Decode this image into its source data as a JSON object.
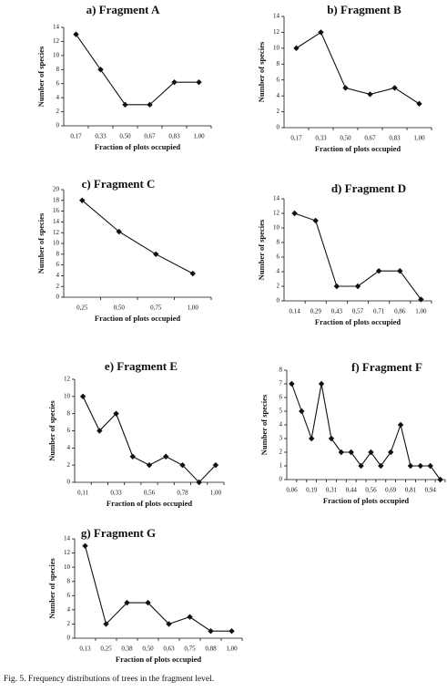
{
  "chart_data": [
    {
      "type": "line",
      "title": "a) Fragment A",
      "ylabel": "Number of species",
      "xlabel": "Fraction of plots occupied",
      "categories": [
        "0,17",
        "0,33",
        "0,50",
        "0,67",
        "0,83",
        "1,00"
      ],
      "values": [
        13,
        8,
        3,
        3,
        6.2,
        6.2
      ],
      "ylim": [
        0,
        14
      ],
      "yticks": [
        0,
        2,
        4,
        6,
        8,
        10,
        12,
        14
      ],
      "color": "#111111"
    },
    {
      "type": "line",
      "title": "b) Fragment B",
      "ylabel": "Number of species",
      "xlabel": "Fraction of plots occupied",
      "categories": [
        "0,17",
        "0,33",
        "0,50",
        "0,67",
        "0,83",
        "1,00"
      ],
      "values": [
        10,
        12,
        5,
        4.2,
        5,
        3
      ],
      "ylim": [
        0,
        14
      ],
      "yticks": [
        0,
        2,
        4,
        6,
        8,
        10,
        12,
        14
      ],
      "color": "#111111"
    },
    {
      "type": "line",
      "title": "c) Fragment C",
      "ylabel": "Number of species",
      "xlabel": "Fraction of plots occupied",
      "categories": [
        "0,25",
        "0,50",
        "0,75",
        "1,00"
      ],
      "values": [
        18,
        12.2,
        8,
        4.4
      ],
      "ylim": [
        0,
        20
      ],
      "yticks": [
        0,
        2,
        4,
        6,
        8,
        10,
        12,
        14,
        16,
        18,
        20
      ],
      "color": "#111111"
    },
    {
      "type": "line",
      "title": "d) Fragment D",
      "ylabel": "Number of species",
      "xlabel": "Fraction of plots occupied",
      "categories": [
        "0,14",
        "0,29",
        "0,43",
        "0,57",
        "0,71",
        "0,86",
        "1,00"
      ],
      "values": [
        12,
        11,
        2,
        2,
        4.1,
        4.1,
        0.2
      ],
      "ylim": [
        0,
        14
      ],
      "yticks": [
        0,
        2,
        4,
        6,
        8,
        10,
        12,
        14
      ],
      "color": "#111111"
    },
    {
      "type": "line",
      "title": "e) Fragment E",
      "ylabel": "Number of species",
      "xlabel": "Fraction of plots occupied",
      "categories": [
        "0,11",
        null,
        "0,33",
        null,
        "0,56",
        null,
        "0,78",
        null,
        "1,00"
      ],
      "values": [
        10,
        6,
        8,
        3,
        2,
        3,
        2,
        0,
        2
      ],
      "ylim": [
        0,
        12
      ],
      "yticks": [
        0,
        2,
        4,
        6,
        8,
        10,
        12
      ],
      "color": "#111111"
    },
    {
      "type": "line",
      "title": "f) Fragment F",
      "ylabel": "Number of species",
      "xlabel": "Fraction of plots occupied",
      "categories": [
        "0,06",
        null,
        "0,19",
        null,
        "0,31",
        null,
        "0,44",
        null,
        "0,56",
        null,
        "0,69",
        null,
        "0,81",
        null,
        "0,94",
        null
      ],
      "values": [
        7,
        5,
        3,
        7,
        3,
        2,
        2,
        1,
        2,
        1,
        2,
        4,
        1,
        1,
        1,
        0
      ],
      "ylim": [
        0,
        8
      ],
      "yticks": [
        0,
        1,
        2,
        3,
        4,
        5,
        6,
        7,
        8
      ],
      "color": "#111111"
    },
    {
      "type": "line",
      "title": "g) Fragment G",
      "ylabel": "Number of species",
      "xlabel": "Fraction of plots occupied",
      "categories": [
        "0,13",
        "0,25",
        "0,38",
        "0,50",
        "0,63",
        "0,75",
        "0,88",
        "1,00"
      ],
      "values": [
        13,
        2,
        5,
        5,
        2,
        3,
        1,
        1
      ],
      "ylim": [
        0,
        14
      ],
      "yticks": [
        0,
        2,
        4,
        6,
        8,
        10,
        12,
        14
      ],
      "color": "#111111"
    }
  ],
  "caption": "Fig. 5. Frequency distributions of trees in the fragment level."
}
